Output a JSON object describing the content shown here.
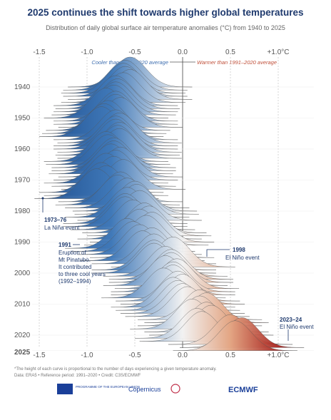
{
  "chart_data": {
    "type": "ridgeline",
    "title": "2025 continues the shift towards higher global temperatures",
    "subtitle": "Distribution of daily global surface air temperature anomalies (°C) from 1940 to 2025",
    "cooler_label": "Cooler than 1991–2020 average",
    "warmer_label": "Warmer than 1991–2020 average",
    "categories": [
      1940,
      1941,
      1942,
      1943,
      1944,
      1945,
      1946,
      1947,
      1948,
      1949,
      1950,
      1951,
      1952,
      1953,
      1954,
      1955,
      1956,
      1957,
      1958,
      1959,
      1960,
      1961,
      1962,
      1963,
      1964,
      1965,
      1966,
      1967,
      1968,
      1969,
      1970,
      1971,
      1972,
      1973,
      1974,
      1975,
      1976,
      1977,
      1978,
      1979,
      1980,
      1981,
      1982,
      1983,
      1984,
      1985,
      1986,
      1987,
      1988,
      1989,
      1990,
      1991,
      1992,
      1993,
      1994,
      1995,
      1996,
      1997,
      1998,
      1999,
      2000,
      2001,
      2002,
      2003,
      2004,
      2005,
      2006,
      2007,
      2008,
      2009,
      2010,
      2011,
      2012,
      2013,
      2014,
      2015,
      2016,
      2017,
      2018,
      2019,
      2020,
      2021,
      2022,
      2023,
      2024,
      2025
    ],
    "values": [
      -0.55,
      -0.6,
      -0.62,
      -0.6,
      -0.55,
      -0.62,
      -0.7,
      -0.68,
      -0.7,
      -0.72,
      -0.8,
      -0.7,
      -0.7,
      -0.65,
      -0.78,
      -0.82,
      -0.85,
      -0.7,
      -0.66,
      -0.7,
      -0.7,
      -0.66,
      -0.68,
      -0.66,
      -0.8,
      -0.78,
      -0.72,
      -0.72,
      -0.75,
      -0.65,
      -0.7,
      -0.8,
      -0.72,
      -0.62,
      -0.85,
      -0.8,
      -0.9,
      -0.65,
      -0.68,
      -0.58,
      -0.5,
      -0.48,
      -0.58,
      -0.45,
      -0.6,
      -0.6,
      -0.52,
      -0.4,
      -0.35,
      -0.45,
      -0.32,
      -0.38,
      -0.58,
      -0.52,
      -0.45,
      -0.32,
      -0.42,
      -0.3,
      -0.1,
      -0.3,
      -0.3,
      -0.18,
      -0.12,
      -0.12,
      -0.18,
      -0.06,
      -0.1,
      -0.1,
      -0.2,
      -0.05,
      0.0,
      -0.1,
      -0.05,
      0.0,
      0.05,
      0.18,
      0.25,
      0.18,
      0.1,
      0.25,
      0.3,
      0.15,
      0.2,
      0.5,
      0.62,
      0.55
    ],
    "xlim": [
      -1.5,
      1.0
    ],
    "xticks": [
      -1.5,
      {
        "value": -1.0,
        "label": "-1.0"
      },
      -0.5,
      {
        "value": 0,
        "label": "0.0"
      },
      0.5,
      {
        "value": 1.0,
        "label": "+1.0°C"
      }
    ],
    "yticks": [
      1940,
      1950,
      1960,
      1970,
      1980,
      1990,
      2000,
      2010,
      2020,
      2025
    ],
    "annotations": [
      {
        "label": "1973–76",
        "lines": [
          "La Niña event"
        ]
      },
      {
        "label": "1991",
        "lines": [
          "Eruption of",
          "Mt Pinatubo.",
          "It contributed",
          "to three cool years",
          "(1992–1994)"
        ]
      },
      {
        "label": "1998",
        "lines": [
          "El Niño event"
        ]
      },
      {
        "label": "2023–24",
        "lines": [
          "El Niño event"
        ]
      }
    ],
    "footnote": [
      "*The height of each curve is proportional to the number of days experiencing a given temperature anomaly.",
      "Data: ERA5 • Reference period: 1991–2020 • Credit: C3S/ECMWF"
    ],
    "logos": [
      "PROGRAMME OF THE EUROPEAN UNION",
      "Copernicus",
      "ECMWF"
    ]
  }
}
